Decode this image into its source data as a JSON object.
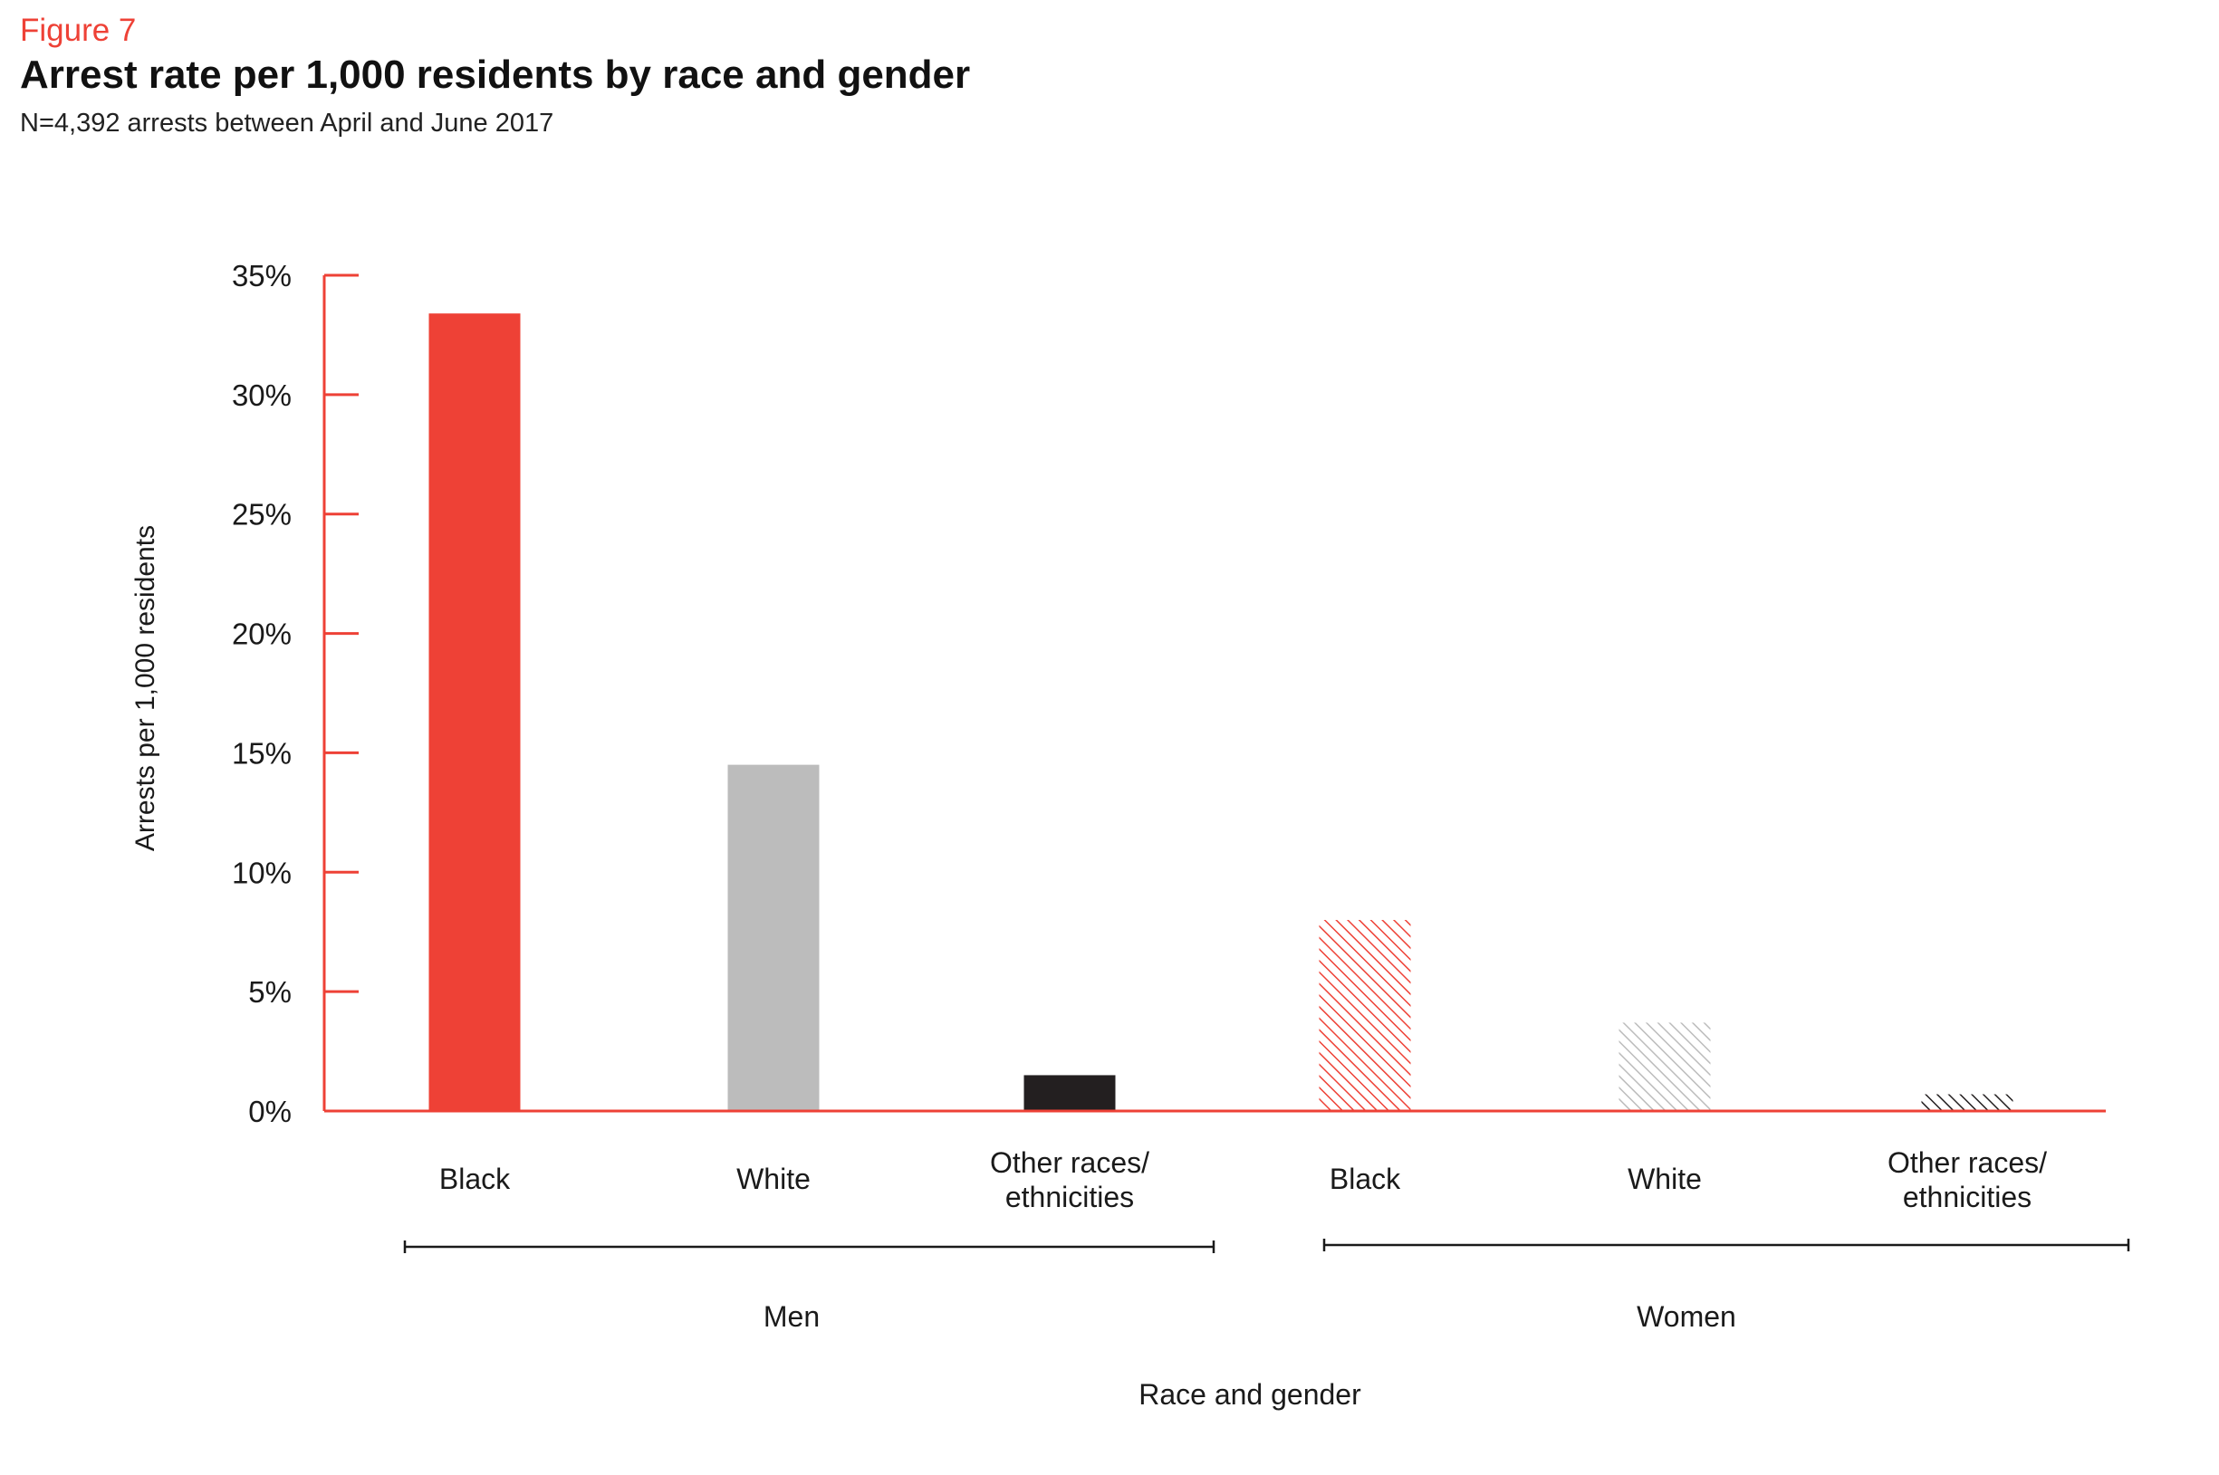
{
  "figure_label": "Figure 7",
  "colors": {
    "accent": "#ee4136",
    "grey": "#bcbcbc",
    "black": "#231f20"
  },
  "chart_data": {
    "type": "bar",
    "title": "Arrest rate per 1,000 residents by race and gender",
    "subtitle": "N=4,392 arrests between April and June 2017",
    "xlabel": "Race and gender",
    "ylabel": "Arrests per 1,000 residents",
    "ylim": [
      0,
      35
    ],
    "yticks": [
      {
        "value": 0,
        "label": "0%"
      },
      {
        "value": 5,
        "label": "5%"
      },
      {
        "value": 10,
        "label": "10%"
      },
      {
        "value": 15,
        "label": "15%"
      },
      {
        "value": 20,
        "label": "20%"
      },
      {
        "value": 25,
        "label": "25%"
      },
      {
        "value": 30,
        "label": "30%"
      },
      {
        "value": 35,
        "label": "35%"
      }
    ],
    "grid": false,
    "groups": [
      {
        "name": "Men",
        "bars": [
          {
            "category": [
              "Black"
            ],
            "value": 33.4,
            "color": "#ee4136",
            "pattern": "solid"
          },
          {
            "category": [
              "White"
            ],
            "value": 14.5,
            "color": "#bcbcbc",
            "pattern": "solid"
          },
          {
            "category": [
              "Other races/",
              "ethnicities"
            ],
            "value": 1.5,
            "color": "#231f20",
            "pattern": "solid"
          }
        ]
      },
      {
        "name": "Women",
        "bars": [
          {
            "category": [
              "Black"
            ],
            "value": 8.0,
            "color": "#ee4136",
            "pattern": "hatch"
          },
          {
            "category": [
              "White"
            ],
            "value": 3.7,
            "color": "#bcbcbc",
            "pattern": "hatch"
          },
          {
            "category": [
              "Other races/",
              "ethnicities"
            ],
            "value": 0.7,
            "color": "#231f20",
            "pattern": "hatch"
          }
        ]
      }
    ]
  }
}
